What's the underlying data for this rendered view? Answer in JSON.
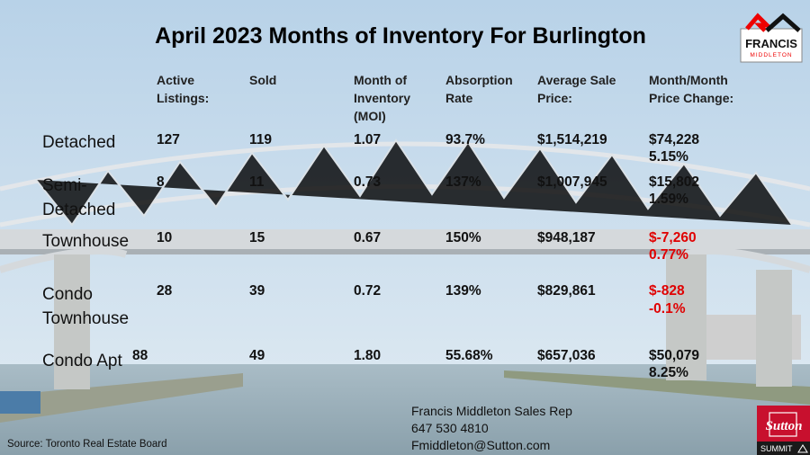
{
  "title": "April  2023 Months of Inventory For Burlington",
  "headers": [
    "Active Listings:",
    "Sold",
    "Month of Inventory (MOI)",
    "Absorption Rate",
    "Average Sale Price:",
    "Month/Month Price Change:"
  ],
  "rows": [
    {
      "label": "Detached",
      "active": "127",
      "sold": "119",
      "moi": "1.07",
      "absorption": "93.7%",
      "avg_price": "$1,514,219",
      "change_amount": "$74,228",
      "change_pct": "5.15%",
      "negative": false
    },
    {
      "label": "Semi-Detached",
      "active": "8",
      "sold": "11",
      "moi": "0.73",
      "absorption": "137%",
      "avg_price": "$1,007,945",
      "change_amount": "$15,802",
      "change_pct": "1.59%",
      "negative": false
    },
    {
      "label": "Townhouse",
      "active": "10",
      "sold": "15",
      "moi": "0.67",
      "absorption": "150%",
      "avg_price": "$948,187",
      "change_amount": "$-7,260",
      "change_pct": "0.77%",
      "negative": true
    },
    {
      "label": "Condo Townhouse",
      "active": "28",
      "sold": "39",
      "moi": "0.72",
      "absorption": "139%",
      "avg_price": "$829,861",
      "change_amount": "$-828",
      "change_pct": "-0.1%",
      "negative": true
    },
    {
      "label": "Condo Apt",
      "active": "88",
      "sold": "49",
      "moi": "1.80",
      "absorption": "55.68%",
      "avg_price": "$657,036",
      "change_amount": "$50,079",
      "change_pct": "8.25%",
      "negative": false
    }
  ],
  "source": "Source: Toronto Real Estate Board",
  "contact": {
    "name": "Francis Middleton Sales Rep",
    "phone": "647 530 4810",
    "email": "Fmiddleton@Sutton.com"
  },
  "logos": {
    "francis": "FRANCIS",
    "middleton": "MIDDLETON",
    "sutton": "Sutton",
    "summit": "SUMMIT"
  },
  "colors": {
    "negative": "#e00000",
    "brand_red": "#c8102e"
  }
}
